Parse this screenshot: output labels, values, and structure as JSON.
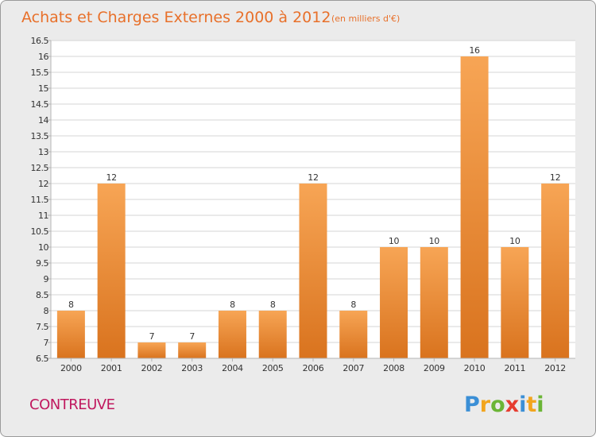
{
  "chart_data": {
    "type": "bar",
    "title": "Achats et Charges Externes 2000 à 2012",
    "unit_note": "(en milliers d'€)",
    "categories": [
      "2000",
      "2001",
      "2002",
      "2003",
      "2004",
      "2005",
      "2006",
      "2007",
      "2008",
      "2009",
      "2010",
      "2011",
      "2012"
    ],
    "values": [
      8,
      12,
      7,
      7,
      8,
      8,
      12,
      8,
      10,
      10,
      16,
      10,
      12
    ],
    "data_labels": [
      "8",
      "12",
      "7",
      "7",
      "8",
      "8",
      "12",
      "8",
      "10",
      "10",
      "16",
      "10",
      "12"
    ],
    "ylim": [
      6.5,
      16.5
    ],
    "yticks": [
      "6.5",
      "7",
      "7.5",
      "8",
      "8.5",
      "9",
      "9.5",
      "10",
      "10.5",
      "11",
      "11.5",
      "12",
      "12.5",
      "13",
      "13.5",
      "14",
      "14.5",
      "15",
      "15.5",
      "16",
      "16.5"
    ],
    "grid": true,
    "xlabel": "",
    "ylabel": "",
    "bar_color_top": "#f7a555",
    "bar_color_bottom": "#d9731e"
  },
  "footer": {
    "city": "CONTREUVE",
    "logo_letters": [
      {
        "ch": "P",
        "color": "#3b8fd6"
      },
      {
        "ch": "r",
        "color": "#f2a51d"
      },
      {
        "ch": "o",
        "color": "#6bb536"
      },
      {
        "ch": "x",
        "color": "#e63c2f"
      },
      {
        "ch": "i",
        "color": "#3b8fd6"
      },
      {
        "ch": "t",
        "color": "#f2a51d"
      },
      {
        "ch": "i",
        "color": "#6bb536"
      }
    ]
  }
}
